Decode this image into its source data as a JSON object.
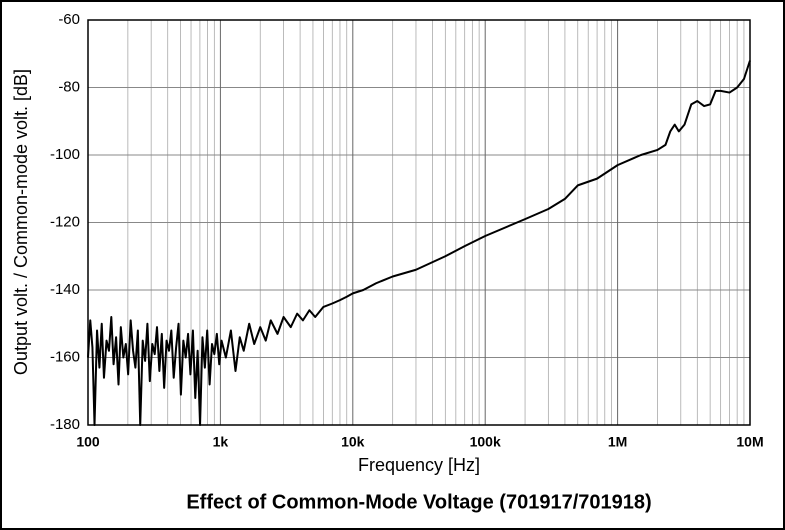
{
  "chart_data": {
    "type": "line",
    "title": "Effect of Common-Mode Voltage (701917/701918)",
    "xlabel": "Frequency [Hz]",
    "ylabel": "Output volt. / Common-mode volt. [dB]",
    "xscale": "log",
    "grid": true,
    "xlim": [
      100,
      10000000
    ],
    "ylim": [
      -180,
      -60
    ],
    "xticks": [
      100,
      {
        "value": 1000,
        "label": "1k"
      },
      {
        "value": 10000,
        "label": "10k"
      },
      {
        "value": 100000,
        "label": "100k"
      },
      {
        "value": 1000000,
        "label": "1M"
      },
      {
        "value": 10000000,
        "label": "10M"
      }
    ],
    "yticks": [
      -180,
      -160,
      -140,
      -120,
      -100,
      -80,
      -60
    ],
    "x": [
      100,
      104,
      108,
      112,
      117,
      122,
      127,
      132,
      138,
      144,
      150,
      156,
      163,
      170,
      177,
      185,
      193,
      201,
      210,
      219,
      228,
      238,
      248,
      259,
      270,
      281,
      293,
      306,
      319,
      332,
      346,
      361,
      376,
      392,
      409,
      426,
      444,
      463,
      483,
      503,
      525,
      547,
      570,
      594,
      620,
      646,
      673,
      702,
      732,
      763,
      795,
      829,
      864,
      900,
      940,
      980,
      1020,
      1100,
      1200,
      1300,
      1400,
      1500,
      1650,
      1800,
      2000,
      2200,
      2400,
      2700,
      3000,
      3400,
      3800,
      4200,
      4700,
      5200,
      6000,
      7000,
      8000,
      9000,
      10000,
      12000,
      15000,
      20000,
      30000,
      50000,
      70000,
      100000,
      200000,
      300000,
      400000,
      500000,
      700000,
      1000000,
      1500000,
      2000000,
      2300000,
      2500000,
      2700000,
      2900000,
      3200000,
      3600000,
      4000000,
      4500000,
      5000000,
      5500000,
      6000000,
      7000000,
      8000000,
      9000000,
      10000000
    ],
    "series": [
      {
        "color": "#000000",
        "values": [
          -160,
          -149,
          -157,
          -180,
          -152,
          -163,
          -150,
          -166,
          -155,
          -158,
          -148,
          -162,
          -154,
          -168,
          -151,
          -160,
          -156,
          -165,
          -149,
          -158,
          -163,
          -152,
          -180,
          -155,
          -161,
          -150,
          -167,
          -156,
          -159,
          -151,
          -164,
          -153,
          -169,
          -155,
          -158,
          -152,
          -166,
          -157,
          -150,
          -171,
          -155,
          -160,
          -153,
          -165,
          -152,
          -172,
          -158,
          -180,
          -154,
          -163,
          -152,
          -168,
          -156,
          -159,
          -153,
          -162,
          -155,
          -160,
          -152,
          -164,
          -154,
          -158,
          -150,
          -156,
          -151,
          -155,
          -149,
          -153,
          -148,
          -151,
          -147,
          -149,
          -146,
          -148,
          -145,
          -144,
          -143,
          -142,
          -141,
          -140,
          -138,
          -136,
          -134,
          -130,
          -127,
          -124,
          -119,
          -116,
          -113,
          -109,
          -107,
          -103,
          -100,
          -98.5,
          -97,
          -93,
          -91,
          -93,
          -91,
          -85,
          -84,
          -85.5,
          -85,
          -81,
          -81,
          -81.5,
          -80,
          -77.5,
          -72
        ]
      }
    ]
  }
}
